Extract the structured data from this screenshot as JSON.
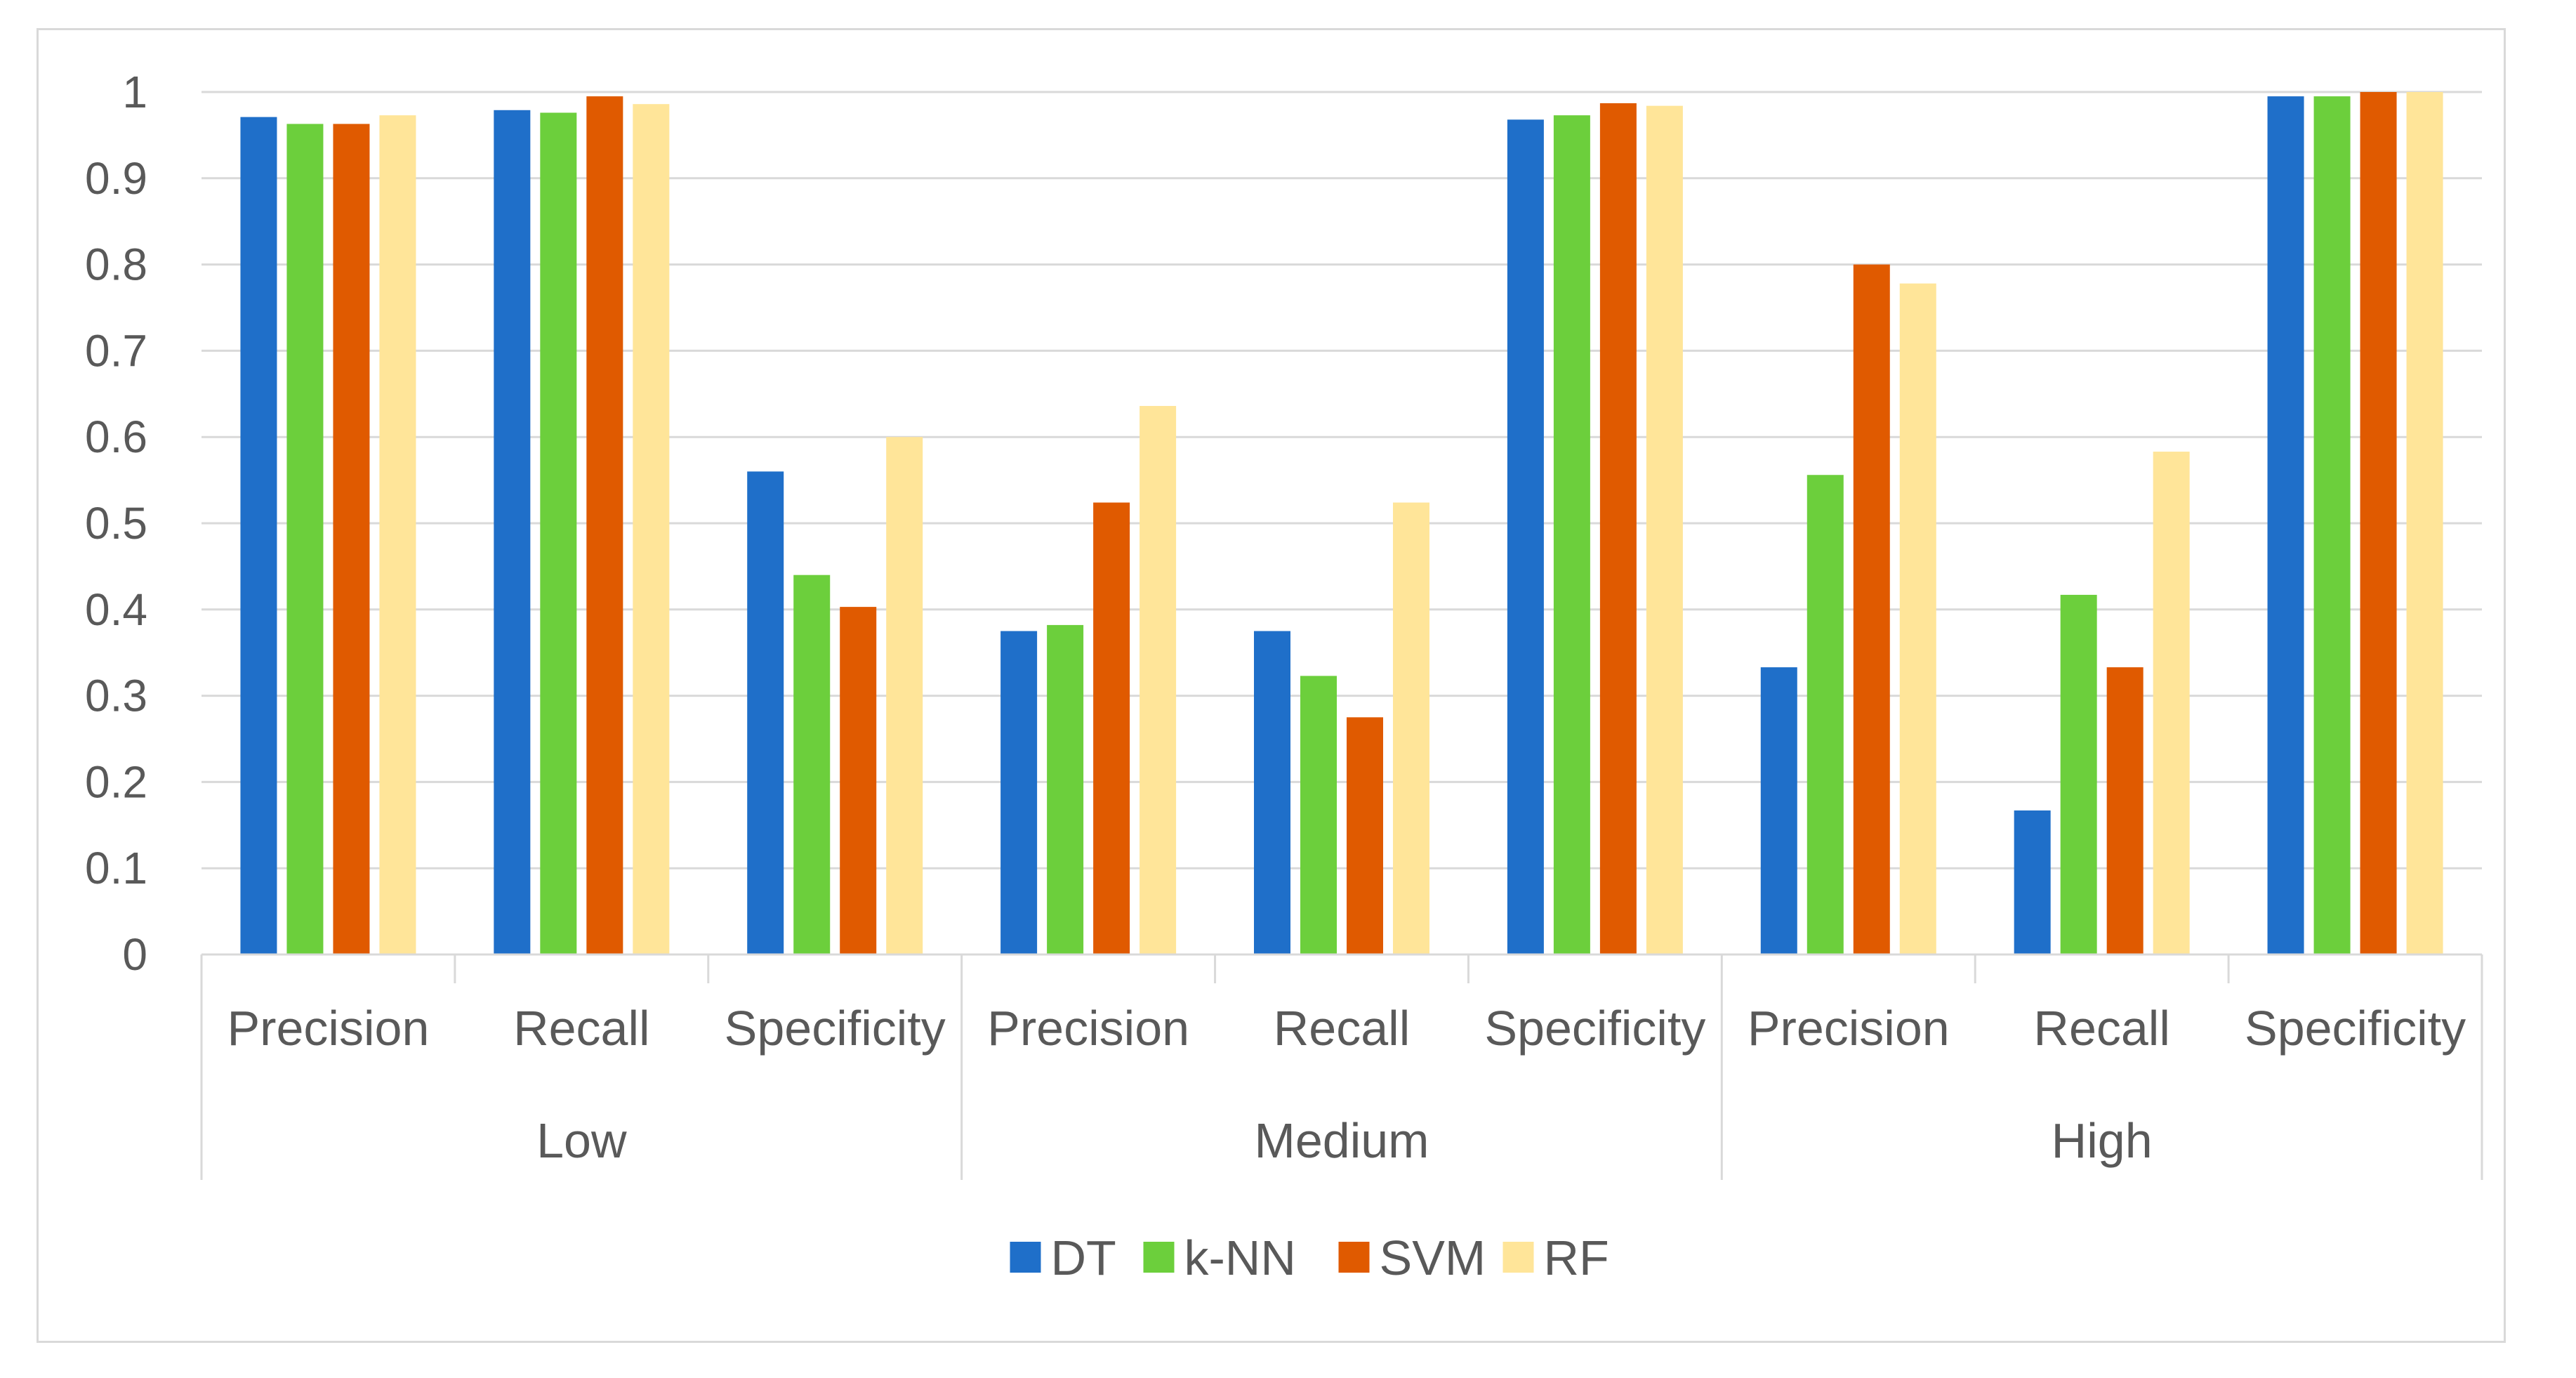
{
  "chart_data": {
    "type": "bar",
    "title": "",
    "xlabel": "",
    "ylabel": "",
    "ylim": [
      0,
      1
    ],
    "yticks": [
      "0",
      "0.1",
      "0.2",
      "0.3",
      "0.4",
      "0.5",
      "0.6",
      "0.7",
      "0.8",
      "0.9",
      "1"
    ],
    "groups": [
      {
        "label": "Low",
        "categories": [
          "Precision",
          "Recall",
          "Specificity"
        ]
      },
      {
        "label": "Medium",
        "categories": [
          "Precision",
          "Recall",
          "Specificity"
        ]
      },
      {
        "label": "High",
        "categories": [
          "Precision",
          "Recall",
          "Specificity"
        ]
      }
    ],
    "series": [
      {
        "name": "DT",
        "color": "#1f6fc9",
        "values": [
          0.971,
          0.979,
          0.56,
          0.375,
          0.375,
          0.968,
          0.333,
          0.167,
          0.995
        ]
      },
      {
        "name": "k-NN",
        "color": "#6ccf3c",
        "values": [
          0.963,
          0.976,
          0.44,
          0.382,
          0.323,
          0.973,
          0.556,
          0.417,
          0.995
        ]
      },
      {
        "name": "SVM",
        "color": "#e05a00",
        "values": [
          0.963,
          0.995,
          0.403,
          0.524,
          0.275,
          0.987,
          0.8,
          0.333,
          1.0
        ]
      },
      {
        "name": "RF",
        "color": "#ffe599",
        "values": [
          0.973,
          0.986,
          0.6,
          0.636,
          0.524,
          0.984,
          0.778,
          0.583,
          1.0
        ]
      }
    ],
    "legend_position": "bottom",
    "grid": true
  }
}
